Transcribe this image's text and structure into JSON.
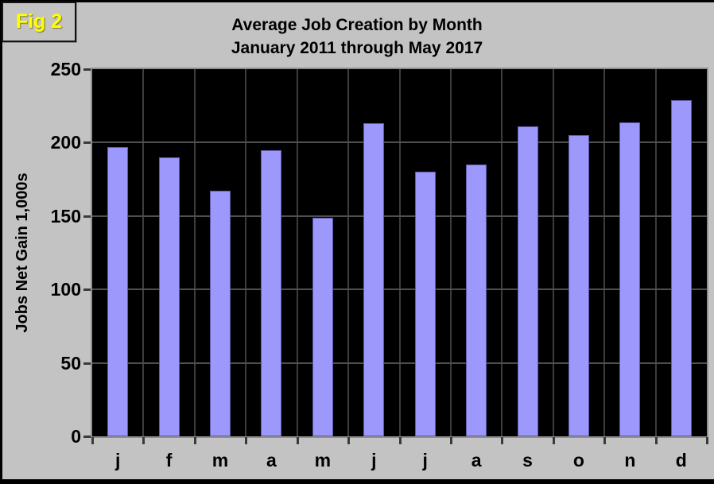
{
  "figure_label": "Fig 2",
  "title": {
    "line1": "Average Job Creation by Month",
    "line2": "January 2011 through May 2017"
  },
  "chart_data": {
    "type": "bar",
    "title": "Average Job Creation by Month — January 2011 through May 2017",
    "categories": [
      "j",
      "f",
      "m",
      "a",
      "m",
      "j",
      "j",
      "a",
      "s",
      "o",
      "n",
      "d"
    ],
    "values": [
      197,
      190,
      167,
      195,
      149,
      213,
      180,
      185,
      211,
      205,
      214,
      229
    ],
    "xlabel": "",
    "ylabel": "Jobs Net Gain 1,000s",
    "ylim": [
      0,
      250
    ],
    "yticks": [
      0,
      50,
      100,
      150,
      200,
      250
    ],
    "ytick_labels": [
      "0",
      "50",
      "100",
      "150",
      "200",
      "250"
    ],
    "grid": true,
    "legend": false,
    "colors": {
      "bar_fill": "#9d99fc",
      "bar_border": "#5e5baa",
      "plot_background": "#000000",
      "plot_border": "#8f8f8f",
      "page_background": "#c3c3c3",
      "gridline_horizontal": "#4f4f4f",
      "gridline_vertical": "#3d3d3d",
      "figure_label_color": "#ffff00",
      "text": "#000000"
    }
  }
}
